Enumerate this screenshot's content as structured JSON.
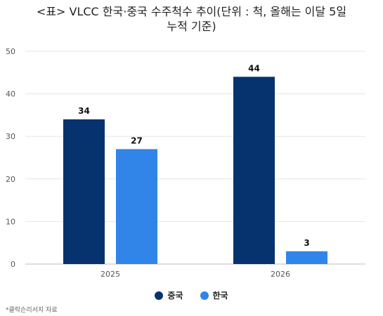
{
  "title_lines": [
    "<표> VLCC 한국·중국 수주척수 추이(단위 : 척, 올해는 이달 5일",
    "누적 기준)"
  ],
  "source": "*클락슨리서치 자료",
  "chart_data": {
    "type": "bar",
    "title": "<표> VLCC 한국·중국 수주척수 추이(단위 : 척, 올해는 이달 5일 누적 기준)",
    "categories": [
      "2025",
      "2026"
    ],
    "series": [
      {
        "name": "중국",
        "color": "#06326e",
        "values": [
          34,
          44
        ]
      },
      {
        "name": "한국",
        "color": "#3185e8",
        "values": [
          27,
          3
        ]
      }
    ],
    "ylim": [
      0,
      50
    ],
    "yticks": [
      "0",
      "10",
      "20",
      "30",
      "40",
      "50"
    ],
    "grid": true,
    "data_labels": true,
    "legend": "bottom-center",
    "xlabel": "",
    "ylabel": ""
  }
}
